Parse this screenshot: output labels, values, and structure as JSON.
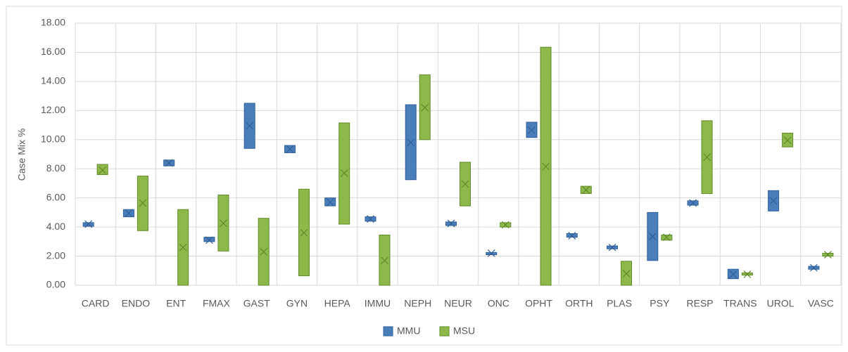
{
  "chart_data": {
    "type": "floating-box",
    "y_label": "Case  Mix %",
    "categories": [
      "CARD",
      "ENDO",
      "ENT",
      "FMAX",
      "GAST",
      "GYN",
      "HEPA",
      "IMMU",
      "NEPH",
      "NEUR",
      "ONC",
      "OPHT",
      "ORTH",
      "PLAS",
      "PSY",
      "RESP",
      "TRANS",
      "UROL",
      "VASC"
    ],
    "series": [
      {
        "name": "MMU",
        "color": "#4a7ebb",
        "edge": "#2f5f97",
        "low": [
          4.05,
          4.7,
          8.2,
          3.0,
          9.4,
          9.1,
          5.45,
          4.4,
          7.25,
          4.1,
          2.1,
          10.15,
          3.3,
          2.5,
          1.7,
          5.5,
          0.45,
          5.1,
          1.1
        ],
        "high": [
          4.3,
          5.2,
          8.6,
          3.3,
          12.5,
          9.6,
          6.0,
          4.7,
          12.4,
          4.35,
          2.25,
          11.2,
          3.55,
          2.7,
          5.0,
          5.8,
          1.1,
          6.5,
          1.3
        ],
        "mean": [
          4.2,
          4.95,
          8.4,
          3.1,
          10.95,
          9.35,
          5.7,
          4.55,
          9.8,
          4.25,
          2.2,
          10.65,
          3.4,
          2.6,
          3.35,
          5.65,
          0.75,
          5.8,
          1.2
        ]
      },
      {
        "name": "MSU",
        "color": "#8db94a",
        "edge": "#5f8a2a",
        "low": [
          7.6,
          3.75,
          0,
          2.35,
          0,
          0.65,
          4.2,
          0,
          10.0,
          5.45,
          4.0,
          0,
          6.3,
          0,
          3.1,
          6.3,
          0.7,
          9.5,
          2.0
        ],
        "high": [
          8.3,
          7.5,
          5.2,
          6.2,
          4.6,
          6.6,
          11.15,
          3.45,
          14.45,
          8.45,
          4.3,
          16.35,
          6.8,
          1.65,
          3.45,
          11.3,
          0.85,
          10.45,
          2.2
        ],
        "mean": [
          7.9,
          5.65,
          2.6,
          4.25,
          2.3,
          3.6,
          7.7,
          1.7,
          12.2,
          6.95,
          4.15,
          8.15,
          6.55,
          0.8,
          3.3,
          8.8,
          0.75,
          9.95,
          2.1
        ]
      }
    ],
    "ylim": [
      0,
      18
    ],
    "yticks": [
      {
        "value": 0,
        "label": "0.00"
      },
      {
        "value": 2,
        "label": "2.00"
      },
      {
        "value": 4,
        "label": "4.00"
      },
      {
        "value": 6,
        "label": "6.00"
      },
      {
        "value": 8,
        "label": "8.00"
      },
      {
        "value": 10,
        "label": "10.00"
      },
      {
        "value": 12,
        "label": "12.00"
      },
      {
        "value": 14,
        "label": "14.00"
      },
      {
        "value": 16,
        "label": "16.00"
      },
      {
        "value": 18,
        "label": "18.00"
      }
    ],
    "grid": true,
    "legend": "bottom"
  }
}
